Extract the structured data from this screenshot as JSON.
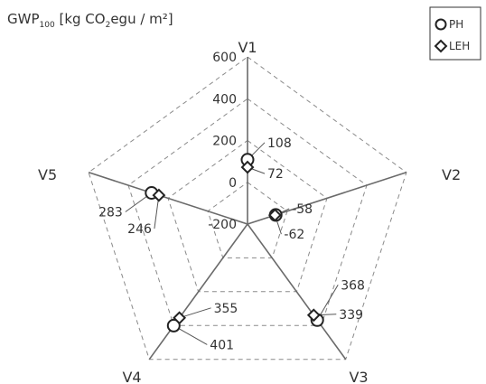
{
  "chart_data": {
    "type": "radar",
    "ylabel_parts": [
      "GWP",
      "100",
      " [kg CO",
      "2",
      "egu / m²]"
    ],
    "axes": [
      "V1",
      "V2",
      "V3",
      "V4",
      "V5"
    ],
    "rlim": [
      -200,
      600
    ],
    "ticks": [
      600,
      400,
      200,
      0,
      -200
    ],
    "tick_labels": [
      "600",
      "400",
      "200",
      "0",
      "-200"
    ],
    "grid": true,
    "legend_position": "top-right",
    "series": [
      {
        "name": "PH",
        "marker": "circle",
        "values": [
          108,
          -58,
          368,
          401,
          283
        ]
      },
      {
        "name": "LEH",
        "marker": "diamond",
        "values": [
          72,
          -62,
          339,
          355,
          246
        ]
      }
    ]
  }
}
